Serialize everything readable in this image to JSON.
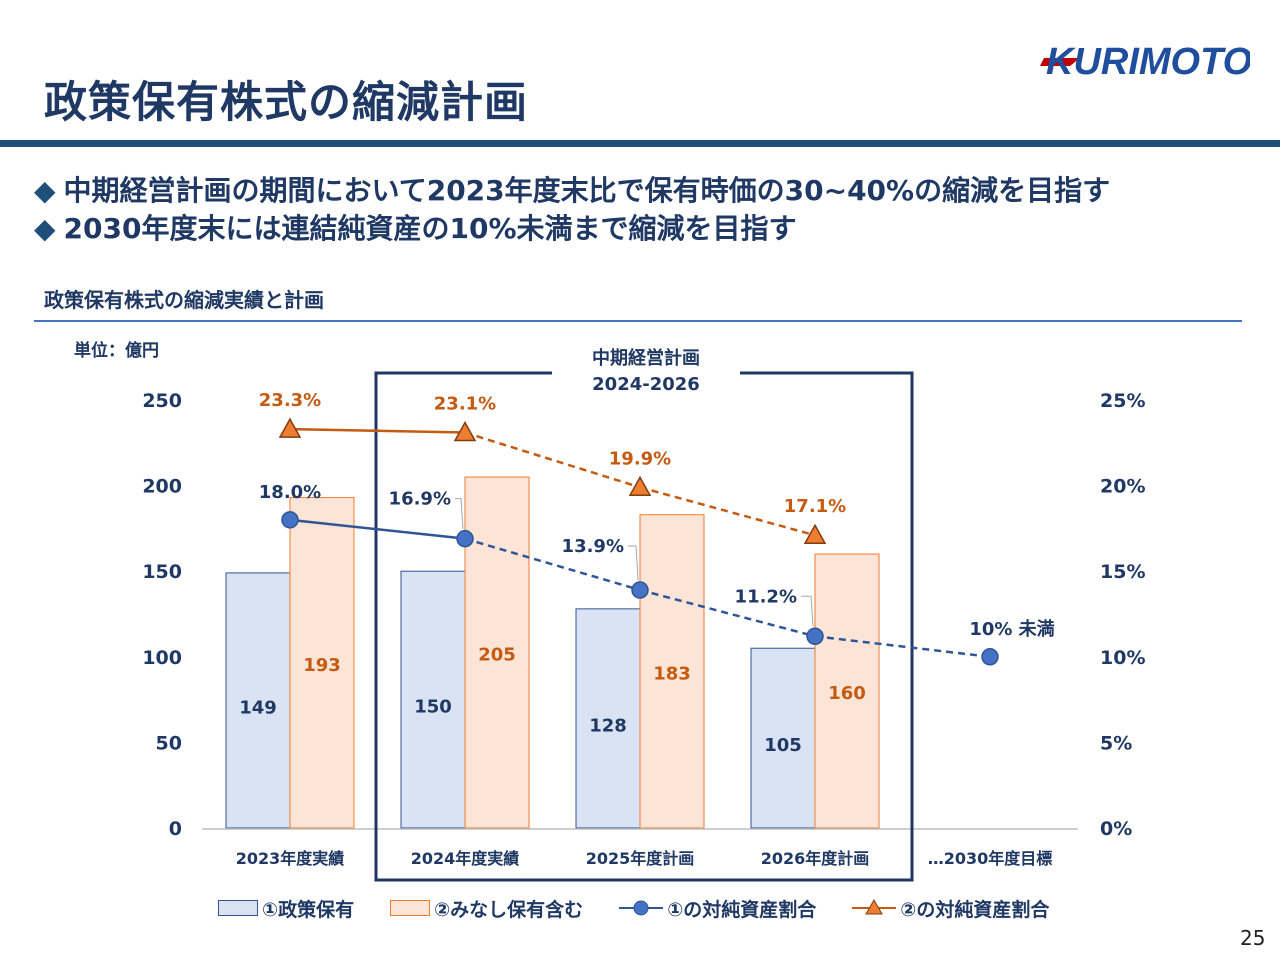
{
  "page": {
    "title": "政策保有株式の縮減計画",
    "logo_text": "KURIMOTO",
    "bullets": [
      "中期経営計画の期間において2023年度末比で保有時価の30~40%の縮減を目指す",
      "2030年度末には連結純資産の10%未満まで縮減を目指す"
    ],
    "bullet_marker": "◆",
    "chart_heading": "政策保有株式の縮減実績と計画",
    "unit_label": "単位：億円",
    "page_number": "25"
  },
  "chart_data": {
    "type": "bar",
    "categories": [
      "2023年度実績",
      "2024年度実績",
      "2025年度計画",
      "2026年度計画",
      "…2030年度目標"
    ],
    "series": [
      {
        "name": "①政策保有",
        "kind": "bar",
        "axis": "left",
        "color": "#dae3f3",
        "stroke": "#2f5597",
        "values": [
          149,
          150,
          128,
          105,
          null
        ],
        "labels": [
          "149",
          "150",
          "128",
          "105",
          ""
        ]
      },
      {
        "name": "②みなし保有含む",
        "kind": "bar",
        "axis": "left",
        "color": "#fce4d6",
        "stroke": "#ed7d31",
        "values": [
          193,
          205,
          183,
          160,
          null
        ],
        "labels": [
          "193",
          "205",
          "183",
          "160",
          ""
        ]
      },
      {
        "name": "①の対純資産割合",
        "kind": "line",
        "axis": "right",
        "color": "#2f5597",
        "marker": "circle",
        "values": [
          18.0,
          16.9,
          13.9,
          11.2,
          10.0
        ],
        "labels": [
          "18.0%",
          "16.9%",
          "13.9%",
          "11.2%",
          "10% 未満"
        ]
      },
      {
        "name": "②の対純資産割合",
        "kind": "line",
        "axis": "right",
        "color": "#c55a11",
        "marker": "triangle",
        "values": [
          23.3,
          23.1,
          19.9,
          17.1,
          null
        ],
        "labels": [
          "23.3%",
          "23.1%",
          "19.9%",
          "17.1%",
          ""
        ]
      }
    ],
    "y_left": {
      "min": 0,
      "max": 250,
      "ticks": [
        "0",
        "50",
        "100",
        "150",
        "200",
        "250"
      ]
    },
    "y_right": {
      "min": 0,
      "max": 25,
      "ticks": [
        "0%",
        "5%",
        "10%",
        "15%",
        "20%",
        "25%"
      ]
    },
    "plan_box": {
      "line1": "中期経営計画",
      "line2": "2024-2026",
      "categories": [
        "2024年度実績",
        "2025年度計画",
        "2026年度計画"
      ]
    },
    "grid": false,
    "legend_position": "bottom"
  }
}
